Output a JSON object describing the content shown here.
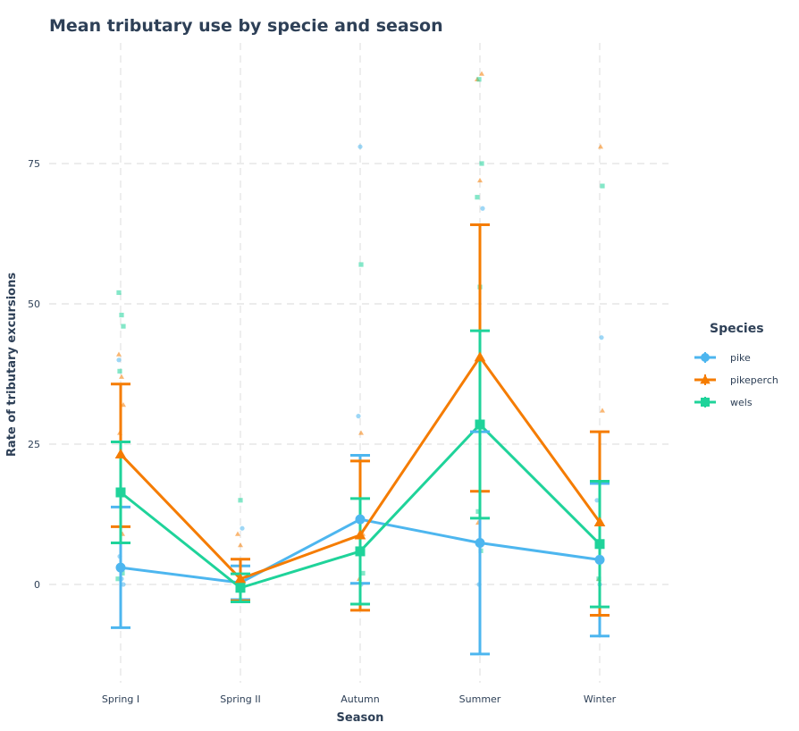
{
  "chart_data": {
    "type": "line",
    "title": "Mean tributary use by specie and season",
    "xlabel": "Season",
    "ylabel": "Rate of tributary excursions",
    "categories": [
      "Spring I",
      "Spring II",
      "Autumn",
      "Summer",
      "Winter"
    ],
    "yticks": [
      0,
      25,
      50,
      75
    ],
    "ylim": [
      -17,
      97
    ],
    "grid": true,
    "legend": {
      "title": "Species",
      "position": "right"
    },
    "series": [
      {
        "name": "pike",
        "color": "#4db6ef",
        "marker": "circle",
        "means": [
          3.0,
          0.3,
          11.6,
          7.4,
          4.4
        ],
        "err_low": [
          -7.7,
          -2.7,
          0.2,
          -12.4,
          -9.2
        ],
        "err_high": [
          13.8,
          3.3,
          23.0,
          27.2,
          18.0
        ],
        "points": [
          {
            "x": 0,
            "y": 40
          },
          {
            "x": 0,
            "y": 1
          },
          {
            "x": 0,
            "y": 0
          },
          {
            "x": 0,
            "y": 5
          },
          {
            "x": 1,
            "y": 10
          },
          {
            "x": 1,
            "y": 0
          },
          {
            "x": 2,
            "y": 78
          },
          {
            "x": 2,
            "y": 30
          },
          {
            "x": 2,
            "y": 0
          },
          {
            "x": 3,
            "y": 67
          },
          {
            "x": 3,
            "y": 0
          },
          {
            "x": 4,
            "y": 44
          },
          {
            "x": 4,
            "y": 15
          },
          {
            "x": 4,
            "y": 0
          }
        ]
      },
      {
        "name": "pikeperch",
        "color": "#f57c00",
        "marker": "triangle",
        "means": [
          23.2,
          1.0,
          8.8,
          40.5,
          11.1
        ],
        "err_low": [
          10.3,
          -2.9,
          -4.6,
          16.6,
          -5.5
        ],
        "err_high": [
          35.7,
          4.5,
          22.0,
          64.1,
          27.2
        ],
        "points": [
          {
            "x": 0,
            "y": 41
          },
          {
            "x": 0,
            "y": 37
          },
          {
            "x": 0,
            "y": 32
          },
          {
            "x": 0,
            "y": 27
          },
          {
            "x": 0,
            "y": 9
          },
          {
            "x": 1,
            "y": 9
          },
          {
            "x": 1,
            "y": 7
          },
          {
            "x": 1,
            "y": 1
          },
          {
            "x": 2,
            "y": 27
          },
          {
            "x": 2,
            "y": 9
          },
          {
            "x": 2,
            "y": 1
          },
          {
            "x": 3,
            "y": 91
          },
          {
            "x": 3,
            "y": 90
          },
          {
            "x": 3,
            "y": 72
          },
          {
            "x": 3,
            "y": 11
          },
          {
            "x": 4,
            "y": 78
          },
          {
            "x": 4,
            "y": 31
          },
          {
            "x": 4,
            "y": 1
          }
        ]
      },
      {
        "name": "wels",
        "color": "#1fd39a",
        "marker": "square",
        "means": [
          16.4,
          -0.6,
          5.9,
          28.5,
          7.2
        ],
        "err_low": [
          7.4,
          -3.1,
          -3.5,
          11.8,
          -4.0
        ],
        "err_high": [
          25.4,
          1.9,
          15.3,
          45.2,
          18.4
        ],
        "points": [
          {
            "x": 0,
            "y": 52
          },
          {
            "x": 0,
            "y": 48
          },
          {
            "x": 0,
            "y": 46
          },
          {
            "x": 0,
            "y": 38
          },
          {
            "x": 0,
            "y": 2
          },
          {
            "x": 0,
            "y": 1
          },
          {
            "x": 1,
            "y": 15
          },
          {
            "x": 1,
            "y": 0
          },
          {
            "x": 2,
            "y": 57
          },
          {
            "x": 2,
            "y": 2
          },
          {
            "x": 3,
            "y": 90
          },
          {
            "x": 3,
            "y": 75
          },
          {
            "x": 3,
            "y": 69
          },
          {
            "x": 3,
            "y": 53
          },
          {
            "x": 3,
            "y": 13
          },
          {
            "x": 3,
            "y": 6
          },
          {
            "x": 4,
            "y": 71
          },
          {
            "x": 4,
            "y": 1
          }
        ]
      }
    ]
  }
}
